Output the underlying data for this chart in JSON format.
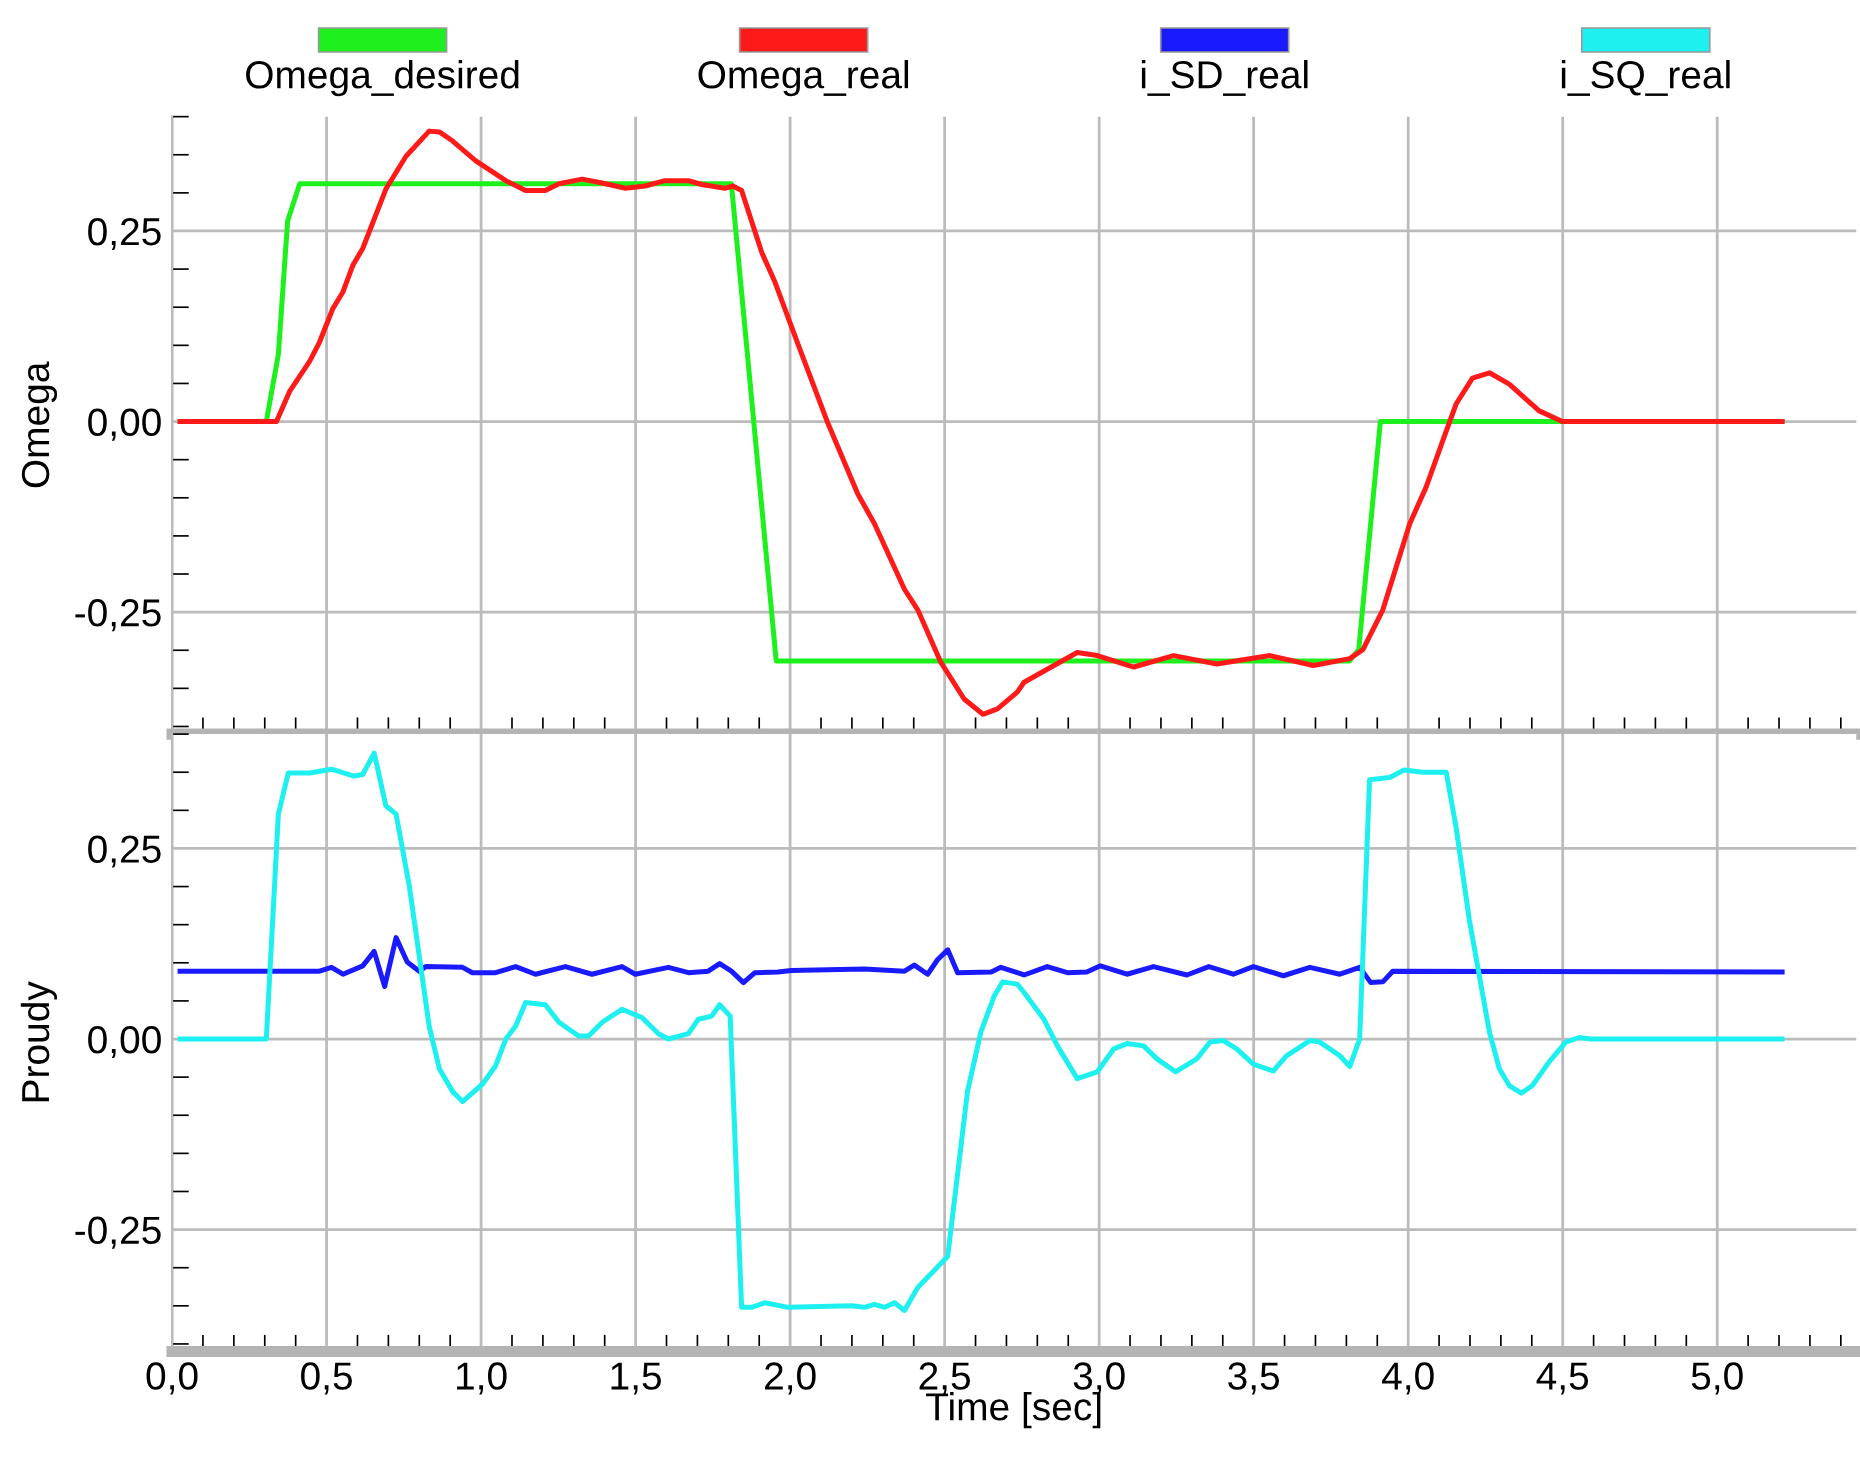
{
  "chart_data": [
    {
      "type": "line",
      "ylabel": "Omega",
      "xlim": [
        0,
        5.45
      ],
      "ylim": [
        -0.41,
        0.4
      ],
      "xticks": [
        {
          "value": 0,
          "label": null
        },
        {
          "value": 0.5,
          "label": null
        },
        {
          "value": 1,
          "label": null
        },
        {
          "value": 1.5,
          "label": null
        },
        {
          "value": 2,
          "label": null
        },
        {
          "value": 2.5,
          "label": null
        },
        {
          "value": 3,
          "label": null
        },
        {
          "value": 3.5,
          "label": null
        },
        {
          "value": 4,
          "label": null
        },
        {
          "value": 4.5,
          "label": null
        },
        {
          "value": 5,
          "label": null
        }
      ],
      "yticks": [
        {
          "value": -0.25,
          "label": "-0,25"
        },
        {
          "value": 0,
          "label": "0,00"
        },
        {
          "value": 0.25,
          "label": "0,25"
        }
      ],
      "tick_labels": "y",
      "grid": true,
      "legend": "top",
      "marker": "none",
      "line_style": "solid",
      "series": [
        {
          "name": "Omega_desired",
          "color": "#1ef01e",
          "x": [
            0.026,
            0.305,
            0.344,
            0.374,
            0.413,
            1.81,
            1.955,
            3.81,
            3.84,
            3.91,
            5.21
          ],
          "values": [
            0,
            0,
            0.088,
            0.263,
            0.312,
            0.312,
            -0.314,
            -0.314,
            -0.299,
            0,
            0
          ]
        },
        {
          "name": "Omega_real",
          "color": "#ff1a1a",
          "x": [
            0.026,
            0.338,
            0.381,
            0.445,
            0.477,
            0.52,
            0.553,
            0.585,
            0.617,
            0.692,
            0.757,
            0.832,
            0.865,
            0.908,
            0.983,
            1.08,
            1.144,
            1.208,
            1.252,
            1.327,
            1.392,
            1.467,
            1.531,
            1.595,
            1.671,
            1.714,
            1.789,
            1.815,
            1.843,
            1.908,
            1.951,
            2.026,
            2.123,
            2.219,
            2.273,
            2.37,
            2.413,
            2.488,
            2.563,
            2.624,
            2.671,
            2.735,
            2.757,
            2.929,
            2.994,
            3.112,
            3.241,
            3.381,
            3.553,
            3.693,
            3.811,
            3.854,
            3.918,
            4.005,
            4.058,
            4.112,
            4.155,
            4.208,
            4.263,
            4.327,
            4.424,
            4.499,
            5.21
          ],
          "values": [
            0,
            0,
            0.04,
            0.079,
            0.104,
            0.148,
            0.17,
            0.205,
            0.227,
            0.305,
            0.348,
            0.381,
            0.38,
            0.368,
            0.342,
            0.316,
            0.303,
            0.303,
            0.312,
            0.318,
            0.313,
            0.306,
            0.309,
            0.316,
            0.316,
            0.311,
            0.306,
            0.309,
            0.303,
            0.222,
            0.183,
            0.101,
            -0.003,
            -0.095,
            -0.134,
            -0.22,
            -0.247,
            -0.316,
            -0.364,
            -0.384,
            -0.377,
            -0.355,
            -0.342,
            -0.303,
            -0.307,
            -0.322,
            -0.307,
            -0.318,
            -0.307,
            -0.32,
            -0.311,
            -0.299,
            -0.247,
            -0.134,
            -0.086,
            -0.025,
            0.023,
            0.057,
            0.064,
            0.049,
            0.014,
            0,
            0
          ]
        }
      ]
    },
    {
      "type": "line",
      "ylabel": "Proudy",
      "xlabel": "Time [sec]",
      "xlim": [
        0,
        5.45
      ],
      "ylim": [
        -0.41,
        0.4
      ],
      "xticks": [
        {
          "value": 0,
          "label": "0,0"
        },
        {
          "value": 0.5,
          "label": "0,5"
        },
        {
          "value": 1,
          "label": "1,0"
        },
        {
          "value": 1.5,
          "label": "1,5"
        },
        {
          "value": 2,
          "label": "2,0"
        },
        {
          "value": 2.5,
          "label": "2,5"
        },
        {
          "value": 3,
          "label": "3,0"
        },
        {
          "value": 3.5,
          "label": "3,5"
        },
        {
          "value": 4,
          "label": "4,0"
        },
        {
          "value": 4.5,
          "label": "4,5"
        },
        {
          "value": 5,
          "label": "5,0"
        }
      ],
      "yticks": [
        {
          "value": -0.25,
          "label": "-0,25"
        },
        {
          "value": 0,
          "label": "0,00"
        },
        {
          "value": 0.25,
          "label": "0,25"
        }
      ],
      "grid": true,
      "legend": "top",
      "marker": "none",
      "line_style": "solid",
      "series": [
        {
          "name": "i_SD_real",
          "color": "#1a1aff",
          "x": [
            0.026,
            0.305,
            0.477,
            0.516,
            0.553,
            0.617,
            0.654,
            0.688,
            0.725,
            0.761,
            0.8,
            0.821,
            0.94,
            0.972,
            1.047,
            1.112,
            1.176,
            1.273,
            1.359,
            1.456,
            1.499,
            1.606,
            1.671,
            1.735,
            1.772,
            1.81,
            1.849,
            1.886,
            1.961,
            2.004,
            2.24,
            2.37,
            2.402,
            2.445,
            2.477,
            2.51,
            2.542,
            2.651,
            2.682,
            2.735,
            2.757,
            2.832,
            2.897,
            2.96,
            3.004,
            3.09,
            3.176,
            3.284,
            3.355,
            3.434,
            3.499,
            3.596,
            3.682,
            3.779,
            3.843,
            3.879,
            3.918,
            3.95,
            5.21
          ],
          "values": [
            0.089,
            0.089,
            0.089,
            0.094,
            0.085,
            0.096,
            0.115,
            0.069,
            0.133,
            0.101,
            0.089,
            0.095,
            0.094,
            0.087,
            0.087,
            0.095,
            0.085,
            0.095,
            0.085,
            0.095,
            0.085,
            0.094,
            0.087,
            0.089,
            0.099,
            0.089,
            0.074,
            0.087,
            0.088,
            0.09,
            0.092,
            0.089,
            0.097,
            0.085,
            0.104,
            0.117,
            0.087,
            0.088,
            0.094,
            0.087,
            0.084,
            0.095,
            0.087,
            0.088,
            0.096,
            0.085,
            0.095,
            0.084,
            0.095,
            0.085,
            0.095,
            0.083,
            0.094,
            0.085,
            0.094,
            0.074,
            0.075,
            0.089,
            0.088
          ]
        },
        {
          "name": "i_SQ_real",
          "color": "#1ef0f0",
          "x": [
            0.026,
            0.305,
            0.344,
            0.376,
            0.445,
            0.516,
            0.589,
            0.617,
            0.654,
            0.692,
            0.725,
            0.768,
            0.832,
            0.865,
            0.908,
            0.94,
            1.005,
            1.047,
            1.08,
            1.112,
            1.144,
            1.208,
            1.252,
            1.316,
            1.348,
            1.392,
            1.456,
            1.521,
            1.574,
            1.606,
            1.671,
            1.703,
            1.746,
            1.772,
            1.806,
            1.843,
            1.875,
            1.918,
            1.994,
            2.198,
            2.24,
            2.273,
            2.306,
            2.338,
            2.37,
            2.413,
            2.456,
            2.51,
            2.574,
            2.617,
            2.66,
            2.688,
            2.735,
            2.757,
            2.821,
            2.865,
            2.929,
            2.994,
            3.047,
            3.09,
            3.144,
            3.187,
            3.247,
            3.316,
            3.359,
            3.402,
            3.445,
            3.499,
            3.563,
            3.606,
            3.682,
            3.714,
            3.779,
            3.811,
            3.843,
            3.875,
            3.94,
            3.987,
            4.047,
            4.123,
            4.155,
            4.198,
            4.263,
            4.295,
            4.327,
            4.366,
            4.402,
            4.456,
            4.51,
            4.553,
            4.59,
            5.21
          ],
          "values": [
            0,
            0,
            0.295,
            0.349,
            0.349,
            0.354,
            0.345,
            0.347,
            0.375,
            0.306,
            0.295,
            0.2,
            0.017,
            -0.039,
            -0.069,
            -0.082,
            -0.059,
            -0.035,
            0,
            0.017,
            0.048,
            0.045,
            0.022,
            0.004,
            0.004,
            0.022,
            0.039,
            0.028,
            0.007,
            0,
            0.007,
            0.026,
            0.03,
            0.045,
            0.03,
            -0.352,
            -0.352,
            -0.346,
            -0.352,
            -0.35,
            -0.352,
            -0.348,
            -0.352,
            -0.346,
            -0.356,
            -0.326,
            -0.308,
            -0.285,
            -0.069,
            0.009,
            0.056,
            0.075,
            0.072,
            0.061,
            0.026,
            -0.009,
            -0.052,
            -0.043,
            -0.013,
            -0.006,
            -0.009,
            -0.026,
            -0.043,
            -0.026,
            -0.004,
            -0.002,
            -0.013,
            -0.033,
            -0.042,
            -0.022,
            -0.002,
            -0.004,
            -0.022,
            -0.036,
            0,
            0.34,
            0.343,
            0.353,
            0.35,
            0.35,
            0.278,
            0.156,
            0.009,
            -0.039,
            -0.061,
            -0.071,
            -0.061,
            -0.03,
            -0.004,
            0.002,
            0,
            0
          ]
        }
      ]
    }
  ]
}
